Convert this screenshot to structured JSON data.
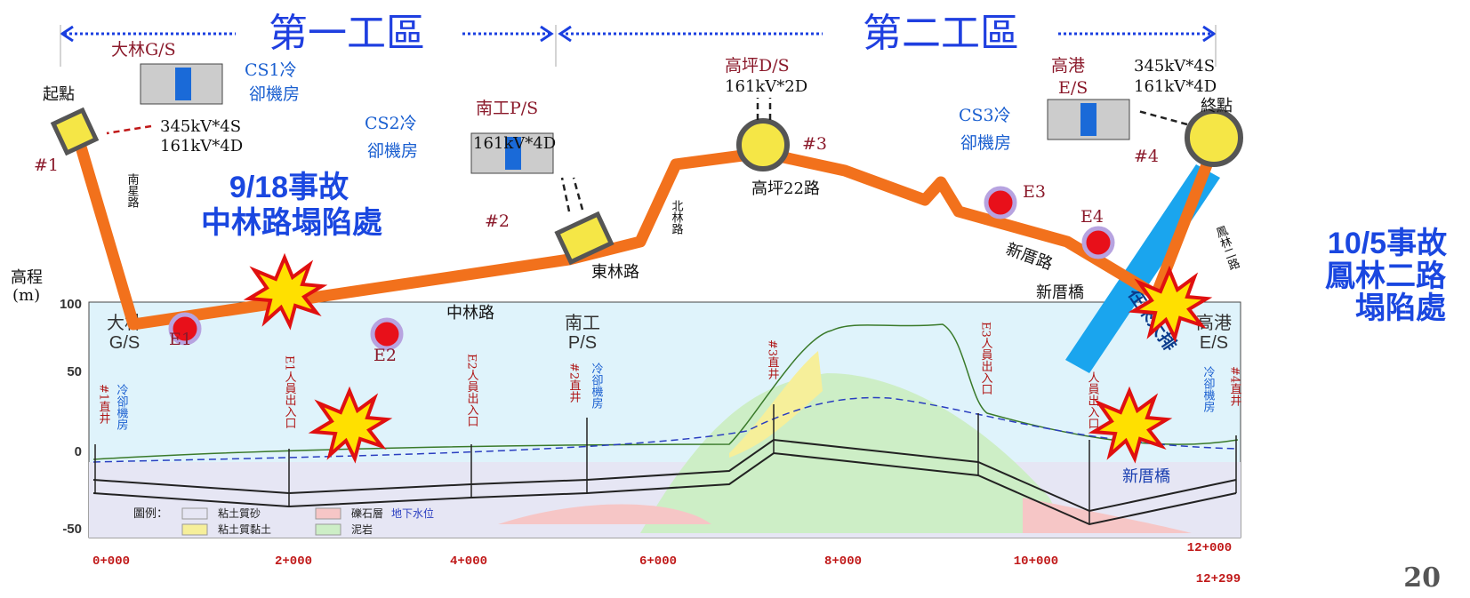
{
  "zones": [
    "第一工區",
    "第二工區"
  ],
  "stations": {
    "dalin": {
      "name": "大林G/S",
      "cooling": [
        "CS1冷",
        "卻機房"
      ],
      "start": "起點",
      "power": [
        "345kV*4S",
        "161kV*4D"
      ],
      "shaft": "#1",
      "road": "南星路"
    },
    "nangong": {
      "cooling": [
        "CS2冷",
        "卻機房"
      ],
      "name": "南工P/S",
      "power": "161kV*4D",
      "shaft": "#2"
    },
    "gaoping": {
      "name": "高坪D/S",
      "power": "161kV*2D",
      "shaft": "#3",
      "road": "高坪22路"
    },
    "gaogang": {
      "cooling": [
        "CS3冷",
        "卻機房"
      ],
      "name": [
        "高港",
        "E/S"
      ],
      "power": [
        "345kV*4S",
        "161kV*4D"
      ],
      "end": "終點",
      "shaft": "#4",
      "road": "鳳林二路"
    }
  },
  "roads": {
    "beilin": "北林路",
    "donglin": "東林路",
    "zhonglin": "中林路",
    "xincuo": "新厝路",
    "bridge": "新厝橋",
    "canal": "在來大排"
  },
  "exits": [
    "E1",
    "E2",
    "E3",
    "E4"
  ],
  "incidents": [
    {
      "date": "9/18事故",
      "place": "中林路塌陷處"
    },
    {
      "date": "10/5事故",
      "place": [
        "鳳林二路",
        "塌陷處"
      ]
    }
  ],
  "profile": {
    "axis_title": [
      "高程",
      "(m)"
    ],
    "yticks": [
      100,
      50,
      0,
      -50
    ],
    "xticks": [
      "0+000",
      "2+000",
      "4+000",
      "6+000",
      "8+000",
      "10+000",
      "12+000"
    ],
    "end_chainage": "12+299",
    "stations": [
      [
        "大林",
        "G/S"
      ],
      [
        "南工",
        "P/S"
      ],
      [
        "高港",
        "E/S"
      ]
    ],
    "shaft_notes": [
      "#1直井",
      "冷卻機房",
      "E1人員出入口",
      "E2人員出入口",
      "#2直井",
      "冷卻機房",
      "#3直井",
      "E3人員出入口",
      "人員出入口",
      "冷卻機房",
      "#4直井"
    ],
    "bridge": "新厝橋",
    "legend": {
      "title": "圖例：",
      "items": [
        "粘土質砂",
        "粘土質黏土",
        "礫石層",
        "泥岩",
        "地下水位"
      ]
    }
  },
  "page_number": "20"
}
